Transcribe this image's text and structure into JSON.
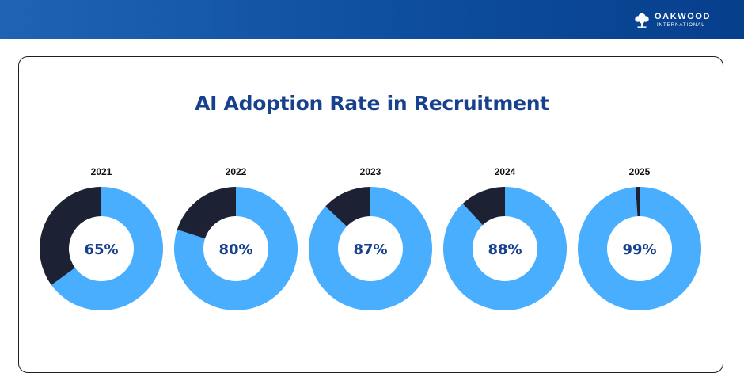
{
  "header": {
    "logo_name": "OAKWOOD",
    "logo_sub": "-INTERNATIONAL-",
    "logo_icon": "tree-icon"
  },
  "colors": {
    "header": "#0e4e9e",
    "adopted": "#4aaeff",
    "not_adopted": "#1c2234",
    "title": "#17418d",
    "percent_text": "#17418d"
  },
  "chart_data": {
    "type": "pie",
    "title": "AI Adoption Rate in Recruitment",
    "categories": [
      "2021",
      "2022",
      "2023",
      "2024",
      "2025"
    ],
    "values": [
      65,
      80,
      87,
      88,
      99
    ],
    "value_labels": [
      "65%",
      "80%",
      "87%",
      "88%",
      "99%"
    ],
    "max": 100,
    "grid": false
  }
}
